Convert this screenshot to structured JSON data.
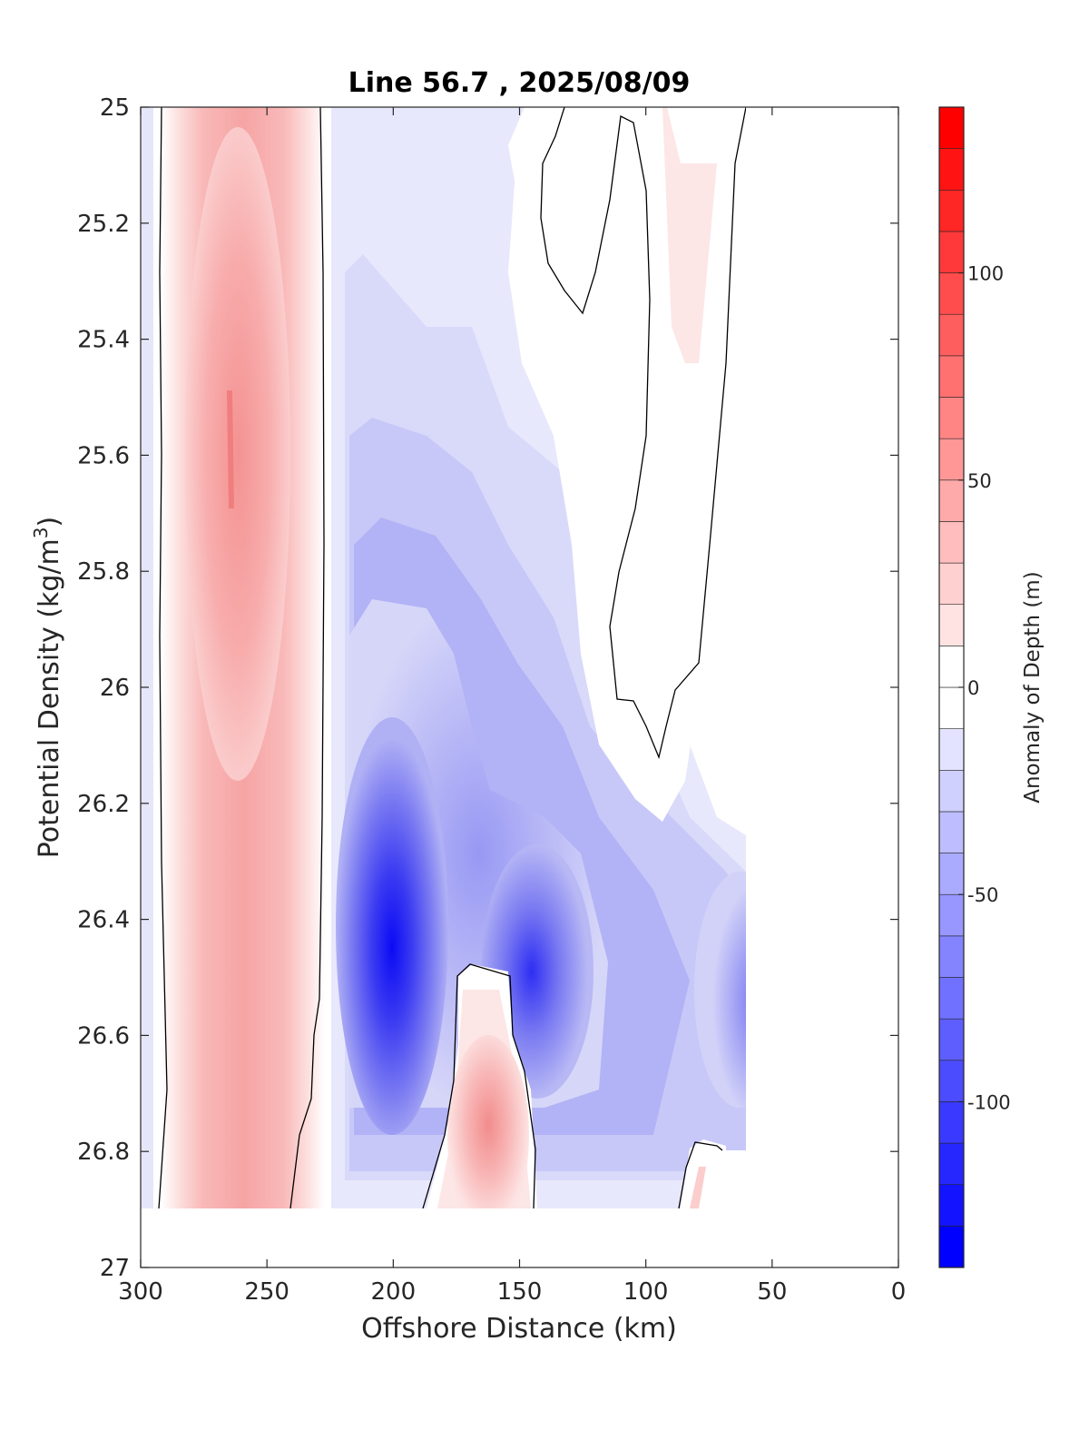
{
  "chart_data": {
    "type": "contour",
    "title": "Line 56.7 , 2025/08/09",
    "xlabel": "Offshore Distance (km)",
    "ylabel": "Potential Density (kg/m",
    "ylabel_sup": "3",
    "ylabel_close": ")",
    "colorbar_label": "Anomaly of Depth (m)",
    "xlim": [
      300,
      0
    ],
    "ylim": [
      25,
      27
    ],
    "x_ticks": [
      "300",
      "250",
      "200",
      "150",
      "100",
      "50",
      "0"
    ],
    "y_ticks": [
      "25",
      "25.2",
      "25.4",
      "25.6",
      "25.8",
      "26",
      "26.2",
      "26.4",
      "26.6",
      "26.8",
      "27"
    ],
    "colorbar_ticks": [
      "100",
      "50",
      "0",
      "-50",
      "-100"
    ],
    "colorbar_range": [
      -140,
      140
    ],
    "contour_step": 10,
    "data_extent": {
      "x_range": [
        300,
        60
      ],
      "y_range": [
        25,
        26.9
      ]
    },
    "colors": {
      "negative": "#0000ff",
      "positive": "#ff0000",
      "zero": "#ffffff",
      "contour_line": "#000000"
    }
  }
}
